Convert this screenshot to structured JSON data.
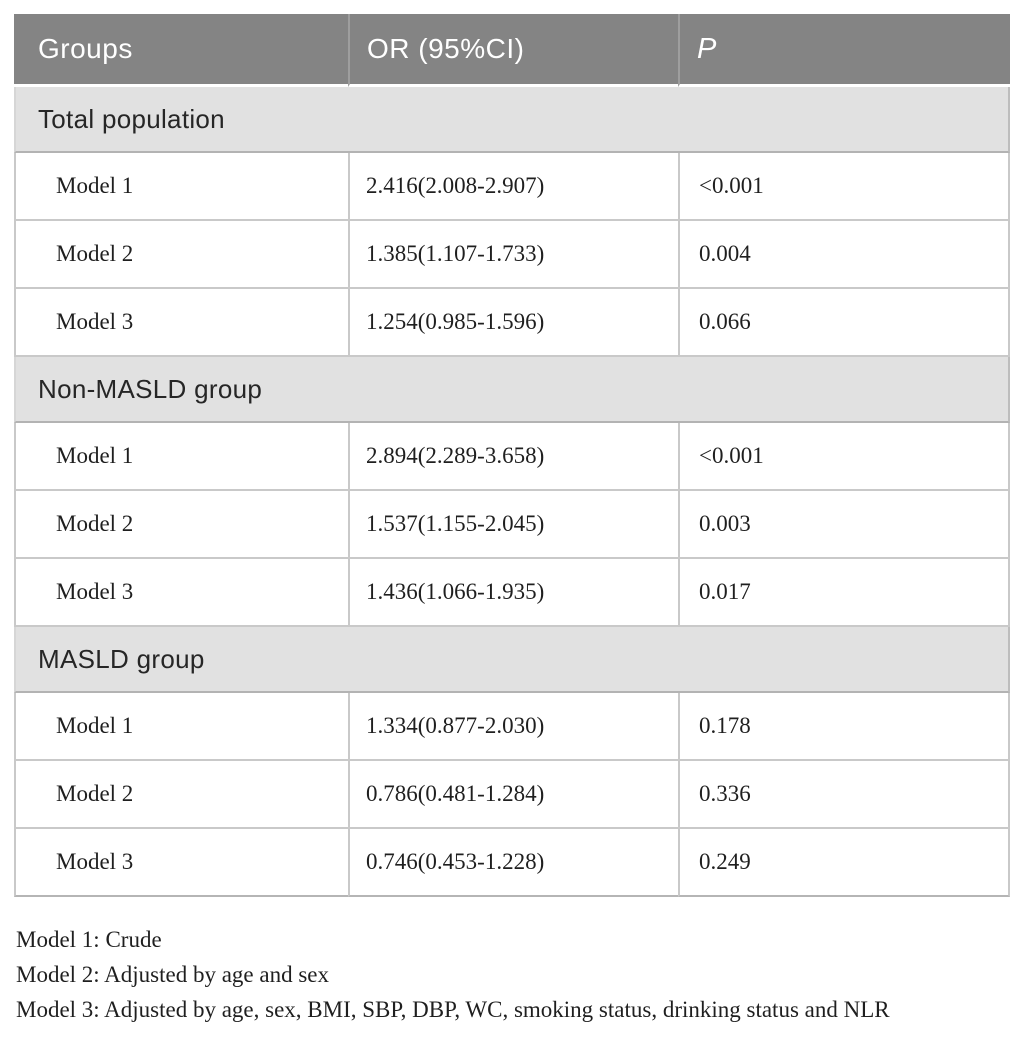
{
  "table": {
    "columns": [
      {
        "label": "Groups"
      },
      {
        "label": "OR (95%CI)"
      },
      {
        "label": "P"
      }
    ],
    "sections": [
      {
        "label": "Total population",
        "rows": [
          {
            "group": "Model 1",
            "or_ci": "2.416(2.008-2.907)",
            "p": "<0.001"
          },
          {
            "group": "Model 2",
            "or_ci": "1.385(1.107-1.733)",
            "p": "0.004"
          },
          {
            "group": "Model 3",
            "or_ci": "1.254(0.985-1.596)",
            "p": "0.066"
          }
        ]
      },
      {
        "label": "Non-MASLD group",
        "rows": [
          {
            "group": "Model 1",
            "or_ci": "2.894(2.289-3.658)",
            "p": "<0.001"
          },
          {
            "group": "Model 2",
            "or_ci": "1.537(1.155-2.045)",
            "p": "0.003"
          },
          {
            "group": "Model 3",
            "or_ci": "1.436(1.066-1.935)",
            "p": "0.017"
          }
        ]
      },
      {
        "label": "MASLD group",
        "rows": [
          {
            "group": "Model 1",
            "or_ci": "1.334(0.877-2.030)",
            "p": "0.178"
          },
          {
            "group": "Model 2",
            "or_ci": "0.786(0.481-1.284)",
            "p": "0.336"
          },
          {
            "group": "Model 3",
            "or_ci": "0.746(0.453-1.228)",
            "p": "0.249"
          }
        ]
      }
    ]
  },
  "footnotes": [
    "Model 1: Crude",
    "Model 2: Adjusted by age and sex",
    "Model 3: Adjusted by age, sex, BMI, SBP, DBP, WC, smoking status, drinking status and NLR"
  ],
  "colors": {
    "header_bg": "#848484",
    "header_text": "#ffffff",
    "section_bg": "#e1e1e1",
    "section_border": "#b3b3b3",
    "row_border": "#c9c9c9",
    "body_text": "#1f1f1f"
  }
}
